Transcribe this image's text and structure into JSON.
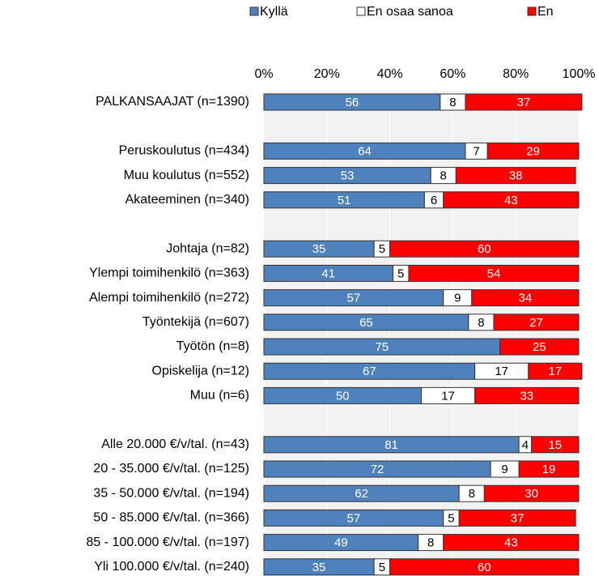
{
  "chart_data": {
    "type": "stacked-barh",
    "categories": [
      "PALKANSAAJAT (n=1390)",
      null,
      "Peruskoulutus (n=434)",
      "Muu koulutus (n=552)",
      "Akateeminen (n=340)",
      null,
      "Johtaja (n=82)",
      "Ylempi toimihenkilö (n=363)",
      "Alempi toimihenkilö (n=272)",
      "Työntekijä (n=607)",
      "Työtön (n=8)",
      "Opiskelija (n=12)",
      "Muu (n=6)",
      null,
      "Alle 20.000 €/v/tal. (n=43)",
      "20 - 35.000 €/v/tal. (n=125)",
      "35 - 50.000 €/v/tal. (n=194)",
      "50 - 85.000 €/v/tal. (n=366)",
      "85 - 100.000 €/v/tal. (n=197)",
      "Yli 100.000 €/v/tal. (n=240)"
    ],
    "series": [
      {
        "name": "Kyllä",
        "color": "#4f81bd",
        "values": [
          56,
          null,
          64,
          53,
          51,
          null,
          35,
          41,
          57,
          65,
          75,
          67,
          50,
          null,
          81,
          72,
          62,
          57,
          49,
          35
        ]
      },
      {
        "name": "En osaa sanoa",
        "color": "#ffffff",
        "values": [
          8,
          null,
          7,
          8,
          6,
          null,
          5,
          5,
          9,
          8,
          null,
          17,
          17,
          null,
          4,
          9,
          8,
          5,
          8,
          5
        ]
      },
      {
        "name": "En",
        "color": "#ff0000",
        "values": [
          37,
          null,
          29,
          38,
          43,
          null,
          60,
          54,
          34,
          27,
          25,
          17,
          33,
          null,
          15,
          19,
          30,
          37,
          43,
          60
        ]
      }
    ],
    "xlim": [
      0,
      100
    ],
    "xticks": [
      {
        "value": 0,
        "label": "0%"
      },
      {
        "value": 20,
        "label": "20%"
      },
      {
        "value": 40,
        "label": "40%"
      },
      {
        "value": 60,
        "label": "60%"
      },
      {
        "value": 80,
        "label": "80%"
      },
      {
        "value": 100,
        "label": "100%"
      }
    ],
    "grid": true,
    "legend": "top"
  }
}
